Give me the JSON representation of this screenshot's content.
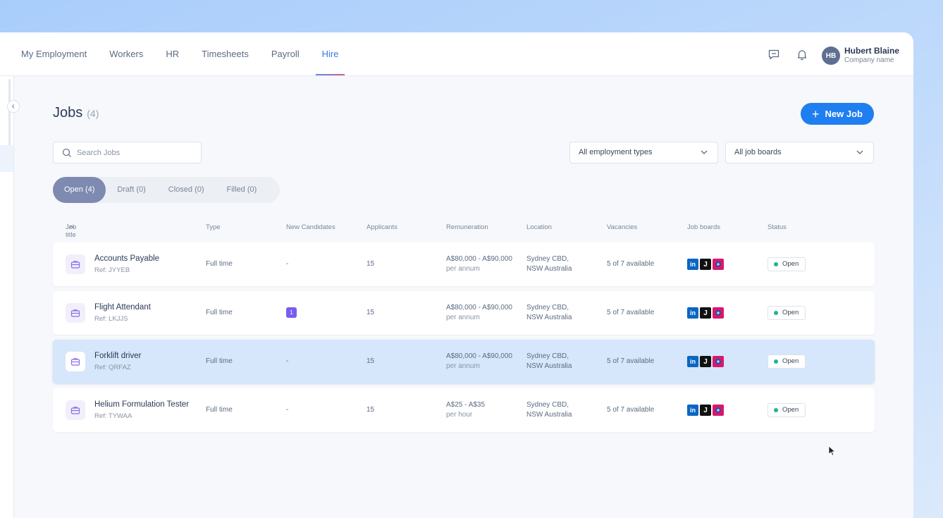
{
  "nav": {
    "items": [
      {
        "label": "My Employment"
      },
      {
        "label": "Workers"
      },
      {
        "label": "HR"
      },
      {
        "label": "Timesheets"
      },
      {
        "label": "Payroll"
      },
      {
        "label": "Hire",
        "active": true
      }
    ]
  },
  "header": {
    "icons": [
      "chat-icon",
      "bell-icon"
    ],
    "user": {
      "initials": "HB",
      "name": "Hubert Blaine",
      "company": "Company name"
    }
  },
  "page": {
    "title": "Jobs",
    "count": "(4)",
    "new_job_label": "New Job",
    "search_placeholder": "Search Jobs",
    "filter_employment": "All employment types",
    "filter_boards": "All job boards"
  },
  "tabs": [
    {
      "label": "Open (4)",
      "active": true
    },
    {
      "label": "Draft (0)"
    },
    {
      "label": "Closed (0)"
    },
    {
      "label": "Filled (0)"
    }
  ],
  "table": {
    "headers": {
      "job_title": "Job title",
      "type": "Type",
      "new_candidates": "New Candidates",
      "applicants": "Applicants",
      "remuneration": "Remuneration",
      "location": "Location",
      "vacancies": "Vacancies",
      "job_boards": "Job boards",
      "status": "Status"
    },
    "rows": [
      {
        "title": "Accounts Payable",
        "ref": "Ref: JYYEB",
        "type": "Full time",
        "new_candidates": "-",
        "applicants": "15",
        "rem_range": "A$80,000 - A$90,000",
        "rem_period": "per annum",
        "loc_line1": "Sydney CBD,",
        "loc_line2": "NSW Australia",
        "vacancies": "5 of 7 available",
        "status": "Open"
      },
      {
        "title": "Flight Attendant",
        "ref": "Ref: LKJJS",
        "type": "Full time",
        "new_candidates": "1",
        "applicants": "15",
        "rem_range": "A$80,000 - A$90,000",
        "rem_period": "per annum",
        "loc_line1": "Sydney CBD,",
        "loc_line2": "NSW Australia",
        "vacancies": "5 of 7 available",
        "status": "Open"
      },
      {
        "title": "Forklift driver",
        "ref": "Ref: QRFAZ",
        "type": "Full time",
        "new_candidates": "-",
        "applicants": "15",
        "rem_range": "A$80,000 - A$90,000",
        "rem_period": "per annum",
        "loc_line1": "Sydney CBD,",
        "loc_line2": "NSW Australia",
        "vacancies": "5 of 7 available",
        "status": "Open",
        "selected": true
      },
      {
        "title": "Helium Formulation Tester",
        "ref": "Ref: TYWAA",
        "type": "Full time",
        "new_candidates": "-",
        "applicants": "15",
        "rem_range": "A$25 - A$35",
        "rem_period": "per hour",
        "loc_line1": "Sydney CBD,",
        "loc_line2": "NSW Australia",
        "vacancies": "5 of 7 available",
        "status": "Open"
      }
    ],
    "job_board_logos": [
      "linkedin-logo",
      "jora-logo",
      "seek-logo"
    ]
  },
  "colors": {
    "accent": "#1f7ef0",
    "active_tab": "#7e8ab0",
    "selected_row": "#d6e6fb",
    "status_open": "#1fb589",
    "badge": "#7b5cf0"
  }
}
